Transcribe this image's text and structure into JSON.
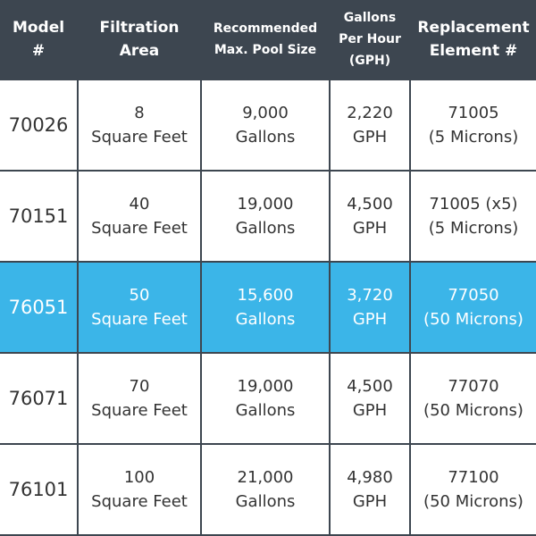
{
  "header": {
    "model": [
      "Model",
      "#"
    ],
    "area": [
      "Filtration",
      "Area"
    ],
    "pool": [
      "Recommended",
      "Max. Pool Size"
    ],
    "gph": [
      "Gallons",
      "Per Hour",
      "(GPH)"
    ],
    "element": [
      "Replacement",
      "Element #"
    ]
  },
  "rows": [
    {
      "model": "70026",
      "area": [
        "8",
        "Square Feet"
      ],
      "pool": [
        "9,000",
        "Gallons"
      ],
      "gph": [
        "2,220",
        "GPH"
      ],
      "element": [
        "71005",
        "(5 Microns)"
      ]
    },
    {
      "model": "70151",
      "area": [
        "40",
        "Square Feet"
      ],
      "pool": [
        "19,000",
        "Gallons"
      ],
      "gph": [
        "4,500",
        "GPH"
      ],
      "element": [
        "71005 (x5)",
        "(5 Microns)"
      ]
    },
    {
      "model": "76051",
      "area": [
        "50",
        "Square Feet"
      ],
      "pool": [
        "15,600",
        "Gallons"
      ],
      "gph": [
        "3,720",
        "GPH"
      ],
      "element": [
        "77050",
        "(50 Microns)"
      ]
    },
    {
      "model": "76071",
      "area": [
        "70",
        "Square Feet"
      ],
      "pool": [
        "19,000",
        "Gallons"
      ],
      "gph": [
        "4,500",
        "GPH"
      ],
      "element": [
        "77070",
        "(50 Microns)"
      ]
    },
    {
      "model": "76101",
      "area": [
        "100",
        "Square Feet"
      ],
      "pool": [
        "21,000",
        "Gallons"
      ],
      "gph": [
        "4,980",
        "GPH"
      ],
      "element": [
        "77100",
        "(50 Microns)"
      ]
    }
  ],
  "colors": {
    "header_bg": "#3d4650",
    "highlight": "#3bb5e8",
    "cell_bg": "#ffffff",
    "text": "#333333"
  }
}
